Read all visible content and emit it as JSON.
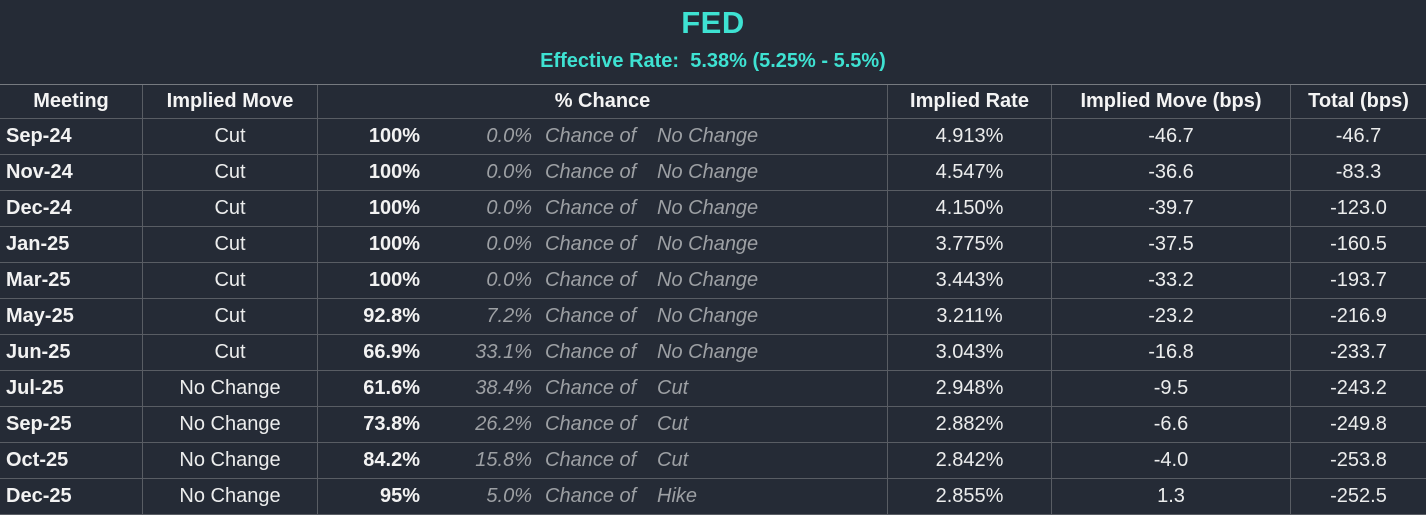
{
  "header": {
    "title": "FED",
    "subtitle": "Effective Rate:  5.38% (5.25% - 5.5%)"
  },
  "columns": {
    "meeting": "Meeting",
    "implied_move": "Implied Move",
    "pct_chance": "% Chance",
    "implied_rate": "Implied Rate",
    "implied_move_bps": "Implied Move (bps)",
    "total_bps": "Total (bps)"
  },
  "rows": [
    {
      "meeting": "Sep-24",
      "implied_move": "Cut",
      "pct_main": "100%",
      "pct_secondary": "0.0%",
      "chance_label": "Chance of",
      "chance_outcome": "No Change",
      "implied_rate": "4.913%",
      "implied_move_bps": "-46.7",
      "total_bps": "-46.7"
    },
    {
      "meeting": "Nov-24",
      "implied_move": "Cut",
      "pct_main": "100%",
      "pct_secondary": "0.0%",
      "chance_label": "Chance of",
      "chance_outcome": "No Change",
      "implied_rate": "4.547%",
      "implied_move_bps": "-36.6",
      "total_bps": "-83.3"
    },
    {
      "meeting": "Dec-24",
      "implied_move": "Cut",
      "pct_main": "100%",
      "pct_secondary": "0.0%",
      "chance_label": "Chance of",
      "chance_outcome": "No Change",
      "implied_rate": "4.150%",
      "implied_move_bps": "-39.7",
      "total_bps": "-123.0"
    },
    {
      "meeting": "Jan-25",
      "implied_move": "Cut",
      "pct_main": "100%",
      "pct_secondary": "0.0%",
      "chance_label": "Chance of",
      "chance_outcome": "No Change",
      "implied_rate": "3.775%",
      "implied_move_bps": "-37.5",
      "total_bps": "-160.5"
    },
    {
      "meeting": "Mar-25",
      "implied_move": "Cut",
      "pct_main": "100%",
      "pct_secondary": "0.0%",
      "chance_label": "Chance of",
      "chance_outcome": "No Change",
      "implied_rate": "3.443%",
      "implied_move_bps": "-33.2",
      "total_bps": "-193.7"
    },
    {
      "meeting": "May-25",
      "implied_move": "Cut",
      "pct_main": "92.8%",
      "pct_secondary": "7.2%",
      "chance_label": "Chance of",
      "chance_outcome": "No Change",
      "implied_rate": "3.211%",
      "implied_move_bps": "-23.2",
      "total_bps": "-216.9"
    },
    {
      "meeting": "Jun-25",
      "implied_move": "Cut",
      "pct_main": "66.9%",
      "pct_secondary": "33.1%",
      "chance_label": "Chance of",
      "chance_outcome": "No Change",
      "implied_rate": "3.043%",
      "implied_move_bps": "-16.8",
      "total_bps": "-233.7"
    },
    {
      "meeting": "Jul-25",
      "implied_move": "No Change",
      "pct_main": "61.6%",
      "pct_secondary": "38.4%",
      "chance_label": "Chance of",
      "chance_outcome": "Cut",
      "implied_rate": "2.948%",
      "implied_move_bps": "-9.5",
      "total_bps": "-243.2"
    },
    {
      "meeting": "Sep-25",
      "implied_move": "No Change",
      "pct_main": "73.8%",
      "pct_secondary": "26.2%",
      "chance_label": "Chance of",
      "chance_outcome": "Cut",
      "implied_rate": "2.882%",
      "implied_move_bps": "-6.6",
      "total_bps": "-249.8"
    },
    {
      "meeting": "Oct-25",
      "implied_move": "No Change",
      "pct_main": "84.2%",
      "pct_secondary": "15.8%",
      "chance_label": "Chance of",
      "chance_outcome": "Cut",
      "implied_rate": "2.842%",
      "implied_move_bps": "-4.0",
      "total_bps": "-253.8"
    },
    {
      "meeting": "Dec-25",
      "implied_move": "No Change",
      "pct_main": "95%",
      "pct_secondary": "5.0%",
      "chance_label": "Chance of",
      "chance_outcome": "Hike",
      "implied_rate": "2.855%",
      "implied_move_bps": "1.3",
      "total_bps": "-252.5"
    }
  ],
  "colors": {
    "accent_cyan": "#3ee2d2",
    "background": "#252b36",
    "grid_line": "#595d64",
    "top_line": "#767a80",
    "text_primary": "#f2f2f2",
    "text_secondary": "#9da0a4"
  }
}
